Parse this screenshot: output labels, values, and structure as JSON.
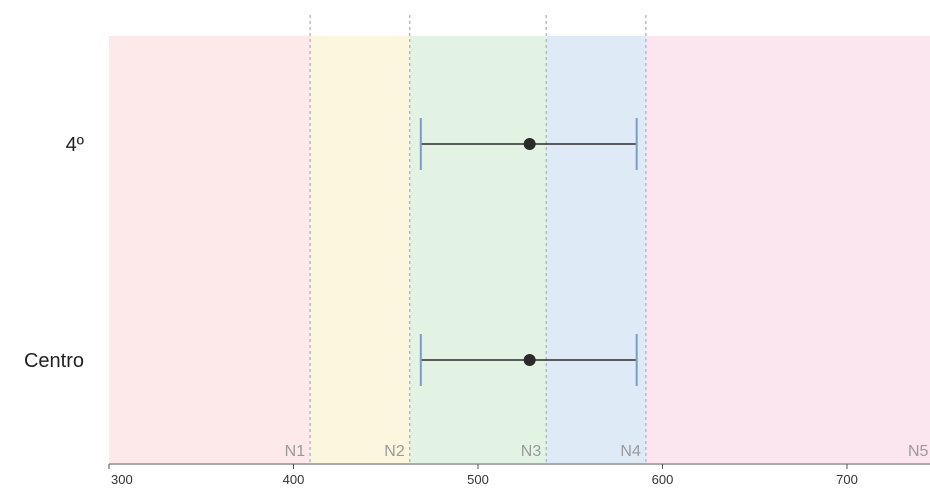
{
  "chart_data": {
    "type": "scatter",
    "title": "",
    "xlabel": "",
    "ylabel": "",
    "xlim": [
      300,
      745
    ],
    "x_ticks": [
      300,
      400,
      500,
      600,
      700
    ],
    "categories": [
      "4º",
      "Centro"
    ],
    "points": [
      {
        "category": "4º",
        "estimate": 528,
        "low": 469,
        "high": 586
      },
      {
        "category": "Centro",
        "estimate": 528,
        "low": 469,
        "high": 586
      }
    ],
    "bands": [
      {
        "label": "",
        "from": 300,
        "to": 409,
        "color": "#fde8ea"
      },
      {
        "label": "N1",
        "from": 409,
        "to": 463,
        "color": "#fdf6de"
      },
      {
        "label": "N2",
        "from": 463,
        "to": 537,
        "color": "#e2f3e4"
      },
      {
        "label": "N3",
        "from": 537,
        "to": 591,
        "color": "#deeaf5"
      },
      {
        "label": "N4",
        "from": 591,
        "to": 745,
        "color": "#fbe6ef"
      }
    ],
    "band_end_label": "N5",
    "cutoffs": [
      409,
      463,
      537,
      591
    ],
    "colors": {
      "point": "#2b2b2b",
      "interval": "#2b2b2b",
      "caps": "#7a9cc8",
      "cutoff_line": "#a9b4c6",
      "axis": "#555555"
    },
    "grid": false,
    "legend": "none"
  }
}
